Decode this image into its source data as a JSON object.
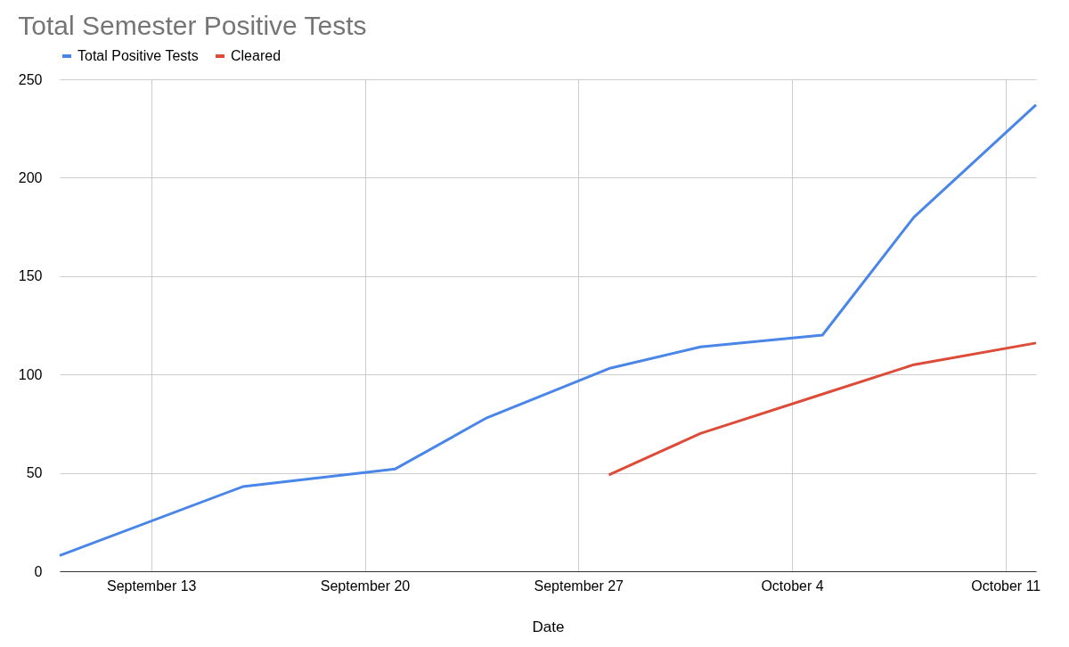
{
  "chart_data": {
    "type": "line",
    "title": "Total Semester Positive Tests",
    "xlabel": "Date",
    "x": [
      "--09-10",
      "--09-16",
      "--09-21",
      "--09-24",
      "--09-28",
      "--10-01",
      "--10-05",
      "--10-08",
      "--10-12"
    ],
    "series": [
      {
        "name": "Total Positive Tests",
        "color": "#4a86e8",
        "values": [
          8,
          43,
          52,
          78,
          103,
          114,
          120,
          180,
          237
        ]
      },
      {
        "name": "Cleared",
        "color": "#dd4b39",
        "values": [
          null,
          null,
          null,
          null,
          49,
          70,
          90,
          105,
          116
        ]
      }
    ],
    "xlim": [
      "--09-10",
      "--10-12"
    ],
    "xticks": [
      {
        "value": "--09-13",
        "label": "September 13"
      },
      {
        "value": "--09-20",
        "label": "September 20"
      },
      {
        "value": "--09-27",
        "label": "September 27"
      },
      {
        "value": "--10-04",
        "label": "October 4"
      },
      {
        "value": "--10-11",
        "label": "October 11"
      }
    ],
    "ylim": [
      0,
      250
    ],
    "yticks": [
      0,
      50,
      100,
      150,
      200,
      250
    ],
    "grid": true,
    "legend": "top",
    "marker": "none",
    "line_style": "solid"
  }
}
